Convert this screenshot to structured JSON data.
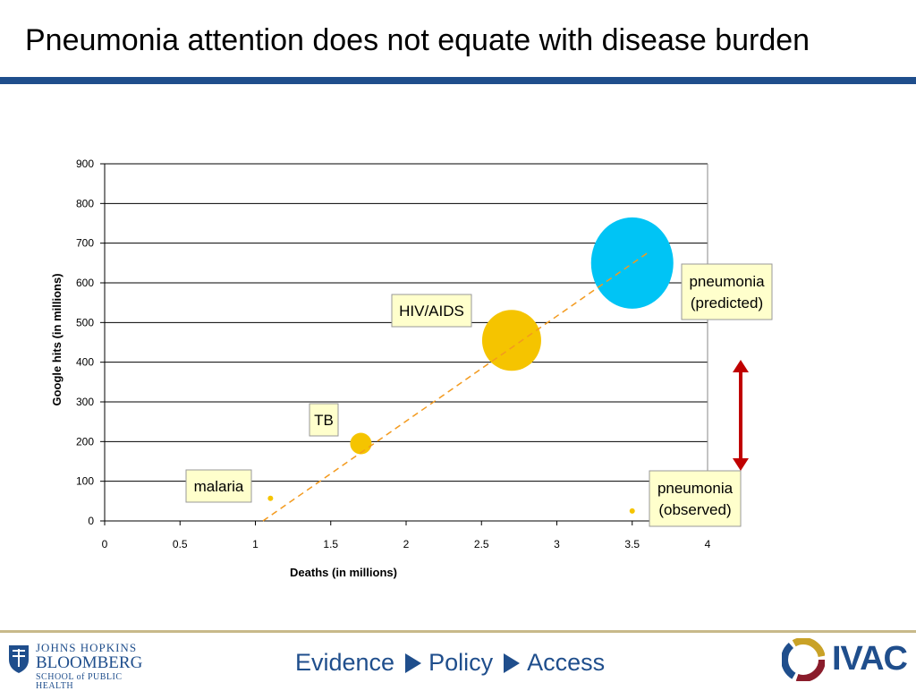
{
  "title": "Pneumonia attention does not equate with disease burden",
  "chart_data": {
    "type": "bubble",
    "xlabel": "Deaths (in millions)",
    "ylabel": "Google hits (in millions)",
    "xlim": [
      0,
      4
    ],
    "ylim": [
      0,
      900
    ],
    "xticks": [
      "0",
      "0.5",
      "1",
      "1.5",
      "2",
      "2.5",
      "3",
      "3.5",
      "4"
    ],
    "yticks": [
      "0",
      "100",
      "200",
      "300",
      "400",
      "500",
      "600",
      "700",
      "800",
      "900"
    ],
    "grid": "horizontal",
    "points": [
      {
        "label": "malaria",
        "x": 1.1,
        "y": 57,
        "color": "#f5c400"
      },
      {
        "label": "TB",
        "x": 1.7,
        "y": 195,
        "color": "#f5c400"
      },
      {
        "label": "HIV/AIDS",
        "x": 2.7,
        "y": 455,
        "color": "#f5c400"
      },
      {
        "label_lines": [
          "pneumonia",
          "(predicted)"
        ],
        "x": 3.5,
        "y": 650,
        "color": "#00c4f5"
      },
      {
        "label_lines": [
          "pneumonia",
          "(observed)"
        ],
        "x": 3.5,
        "y": 25,
        "color": "#f5c400"
      }
    ],
    "trendline": {
      "from": [
        1.05,
        0
      ],
      "to": [
        3.6,
        675
      ],
      "color": "#f39a1e",
      "style": "dashed"
    },
    "gap_arrow_color": "#c00000"
  },
  "footer": {
    "jh_line1": "JOHNS HOPKINS",
    "jh_line2": "BLOOMBERG",
    "jh_line3": "SCHOOL of PUBLIC HEALTH",
    "evidence": "Evidence",
    "policy": "Policy",
    "access": "Access",
    "ivac": "IVAC"
  }
}
